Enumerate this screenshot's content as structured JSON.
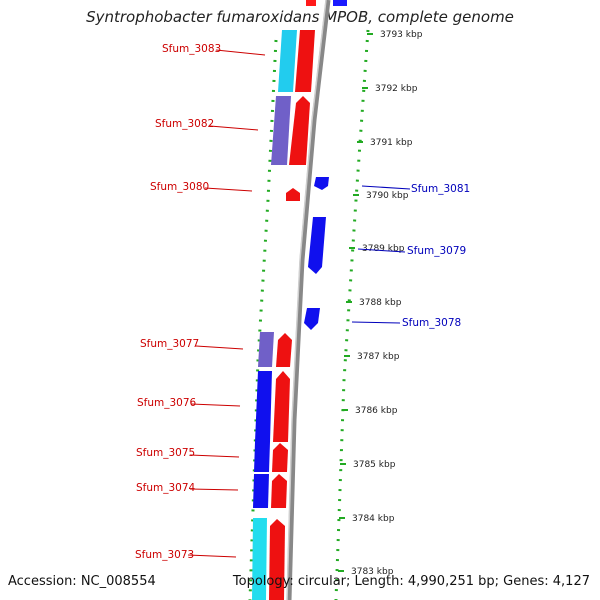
{
  "title": "Syntrophobacter fumaroxidans MPOB, complete genome",
  "accession": "Accession: NC_008554",
  "summary": "Topology: circular; Length: 4,990,251 bp; Genes: 4,127",
  "colors": {
    "forward_cds": "#ff1a1a",
    "reverse_cds": "#1a1aff",
    "cog_cyan": "#22ddee",
    "cog_purple": "#7766cc",
    "gc_skew": "#22aa22",
    "backbone": "#999999",
    "label_forward": "#cc0000",
    "label_reverse": "#0000bb"
  },
  "scale_ticks": [
    "3793 kbp",
    "3792 kbp",
    "3791 kbp",
    "3790 kbp",
    "3789 kbp",
    "3788 kbp",
    "3787 kbp",
    "3786 kbp",
    "3785 kbp",
    "3784 kbp",
    "3783 kbp"
  ],
  "gene_labels_left": [
    "Sfum_3083",
    "Sfum_3082",
    "Sfum_3080",
    "Sfum_3077",
    "Sfum_3076",
    "Sfum_3075",
    "Sfum_3074",
    "Sfum_3073"
  ],
  "gene_labels_right": [
    "Sfum_3081",
    "Sfum_3079",
    "Sfum_3078"
  ]
}
